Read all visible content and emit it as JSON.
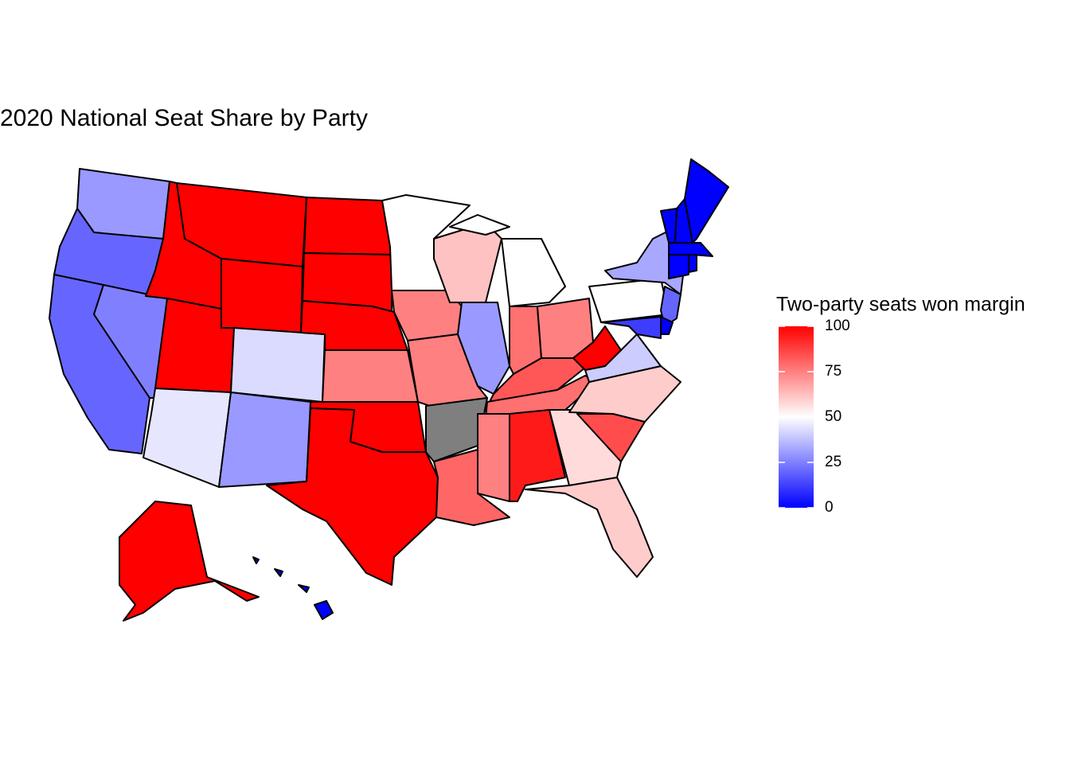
{
  "chart_data": {
    "type": "choropleth",
    "title": "2020 National Seat Share by Party",
    "legend_title": "Two-party seats won margin",
    "values": [
      30,
      20,
      20,
      25,
      100,
      100,
      100,
      100,
      45,
      43,
      30,
      100,
      100,
      100,
      75,
      100,
      100,
      50,
      75,
      75,
      null,
      80,
      62,
      30,
      50,
      78,
      75,
      83,
      78,
      75,
      95,
      57,
      60,
      85,
      60,
      40,
      100,
      50,
      33,
      20,
      12,
      0,
      0,
      0,
      0,
      0,
      0,
      0,
      100,
      0
    ],
    "clim": [
      0,
      100
    ],
    "cticks": [
      0,
      25,
      50,
      75,
      100
    ],
    "color_scale": [
      "#0000ff",
      "#ffffff",
      "#ff0000"
    ],
    "na_color": "#7f7f7f"
  }
}
